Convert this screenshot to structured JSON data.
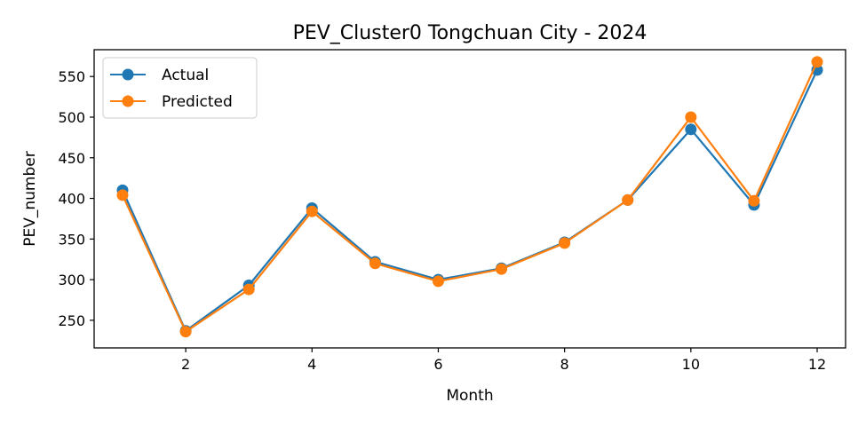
{
  "chart_data": {
    "type": "line",
    "title": "PEV_Cluster0 Tongchuan City - 2024",
    "xlabel": "Month",
    "ylabel": "PEV_number",
    "x": [
      1,
      2,
      3,
      4,
      5,
      6,
      7,
      8,
      9,
      10,
      11,
      12
    ],
    "xlim": [
      0.55,
      12.45
    ],
    "ylim": [
      216,
      583
    ],
    "xticks": [
      2,
      4,
      6,
      8,
      10,
      12
    ],
    "yticks": [
      250,
      300,
      350,
      400,
      450,
      500,
      550
    ],
    "grid": false,
    "legend_position": "upper-left",
    "series": [
      {
        "name": "Actual",
        "color": "#1f77b4",
        "marker": "circle",
        "values": [
          410,
          237,
          293,
          388,
          322,
          300,
          314,
          346,
          398,
          485,
          392,
          558
        ]
      },
      {
        "name": "Predicted",
        "color": "#ff7f0e",
        "marker": "circle",
        "values": [
          404,
          236,
          288,
          384,
          320,
          298,
          313,
          345,
          398,
          500,
          397,
          568
        ]
      }
    ]
  }
}
